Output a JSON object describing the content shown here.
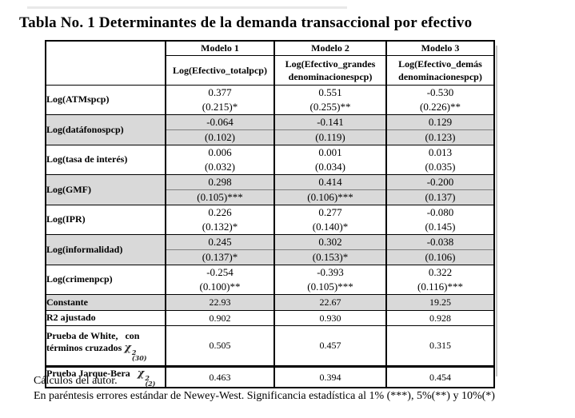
{
  "title": "Tabla No. 1 Determinantes de la demanda transaccional por efectivo",
  "colors": {
    "shaded_row": "#d9d9d9",
    "border": "#000000",
    "text": "#000000"
  },
  "table": {
    "headers": {
      "models": [
        "Modelo 1",
        "Modelo 2",
        "Modelo 3"
      ],
      "depvars": [
        "Log(Efectivo_totalpcp)",
        "Log(Efectivo_grandes denominacionespcp)",
        "Log(Efectivo_demás denominacionespcp)"
      ]
    },
    "rows": [
      {
        "label": "Log(ATMspcp)",
        "coefs": [
          "0.377",
          "0.551",
          "-0.530"
        ],
        "errors": [
          "(0.215)*",
          "(0.255)**",
          "(0.226)**"
        ]
      },
      {
        "label": "Log(datáfonospcp)",
        "coefs": [
          "-0.064",
          "-0.141",
          "0.129"
        ],
        "errors": [
          "(0.102)",
          "(0.119)",
          "(0.123)"
        ]
      },
      {
        "label": "Log(tasa de interés)",
        "coefs": [
          "0.006",
          "0.001",
          "0.013"
        ],
        "errors": [
          "(0.032)",
          "(0.034)",
          "(0.035)"
        ]
      },
      {
        "label": "Log(GMF)",
        "coefs": [
          "0.298",
          "0.414",
          "-0.200"
        ],
        "errors": [
          "(0.105)***",
          "(0.106)***",
          "(0.137)"
        ]
      },
      {
        "label": "Log(IPR)",
        "coefs": [
          "0.226",
          "0.277",
          "-0.080"
        ],
        "errors": [
          "(0.132)*",
          "(0.140)*",
          "(0.145)"
        ]
      },
      {
        "label": "Log(informalidad)",
        "coefs": [
          "0.245",
          "0.302",
          "-0.038"
        ],
        "errors": [
          "(0.137)*",
          "(0.153)*",
          "(0.106)"
        ]
      },
      {
        "label": "Log(crimenpcp)",
        "coefs": [
          "-0.254",
          "-0.393",
          "0.322"
        ],
        "errors": [
          "(0.100)**",
          "(0.105)***",
          "(0.116)***"
        ]
      }
    ],
    "constante": {
      "label": "Constante",
      "values": [
        "22.93",
        "22.67",
        "19.25"
      ]
    },
    "r2": {
      "label": "R2 ajustado",
      "values": [
        "0.902",
        "0.930",
        "0.928"
      ]
    },
    "white": {
      "label_line1": "Prueba de White,   con",
      "label_line2": "términos cruzados",
      "chi_base": "χ",
      "chi_sup": "2",
      "chi_sub": "(30)",
      "values": [
        "0.505",
        "0.457",
        "0.315"
      ]
    },
    "jarque": {
      "label": "Prueba Jarque-Bera",
      "chi_base": "χ",
      "chi_sup": "2",
      "chi_sub": "(2)",
      "values": [
        "0.463",
        "0.394",
        "0.454"
      ]
    }
  },
  "footnotes": [
    "Cálculos del autor.",
    "En paréntesis errores estándar de Newey-West. Significancia estadística al 1% (***), 5%(**) y 10%(*)"
  ]
}
